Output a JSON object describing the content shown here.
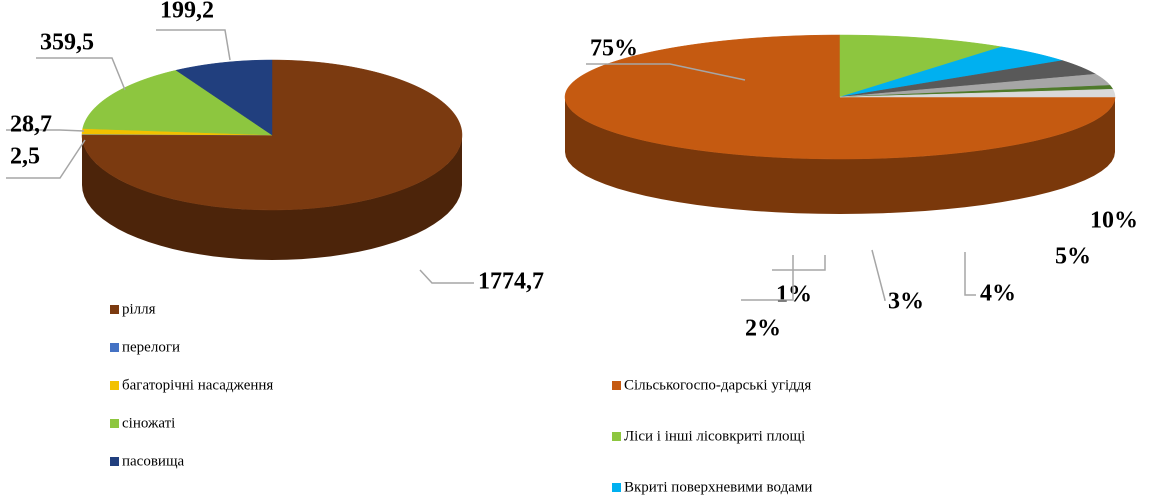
{
  "chart_data": [
    {
      "type": "pie3d",
      "categories": [
        "рілля",
        "перелоги",
        "багаторічні насадження",
        "сіножаті",
        "пасовища"
      ],
      "values": [
        1774.7,
        2.5,
        28.7,
        359.5,
        199.2
      ],
      "value_labels": [
        "1774,7",
        "2,5",
        "28,7",
        "359,5",
        "199,2"
      ],
      "colors": [
        "#7b3a10",
        "#4472c4",
        "#f2c100",
        "#8dc63f",
        "#213f7e"
      ]
    },
    {
      "type": "pie3d",
      "categories": [
        "Сільськогоспо-дарські угіддя",
        "Ліси і інші лісовкриті площі",
        "Вкриті поверхневими водами",
        null,
        null,
        null,
        null
      ],
      "values": [
        75,
        10,
        5,
        4,
        3,
        1,
        2
      ],
      "value_labels": [
        "75%",
        "10%",
        "5%",
        "4%",
        "3%",
        "1%",
        "2%"
      ],
      "colors": [
        "#c55a11",
        "#8dc63f",
        "#00b0f0",
        "#595959",
        "#a6a6a6",
        "#4e7a2a",
        "#d9d9d9"
      ]
    }
  ]
}
